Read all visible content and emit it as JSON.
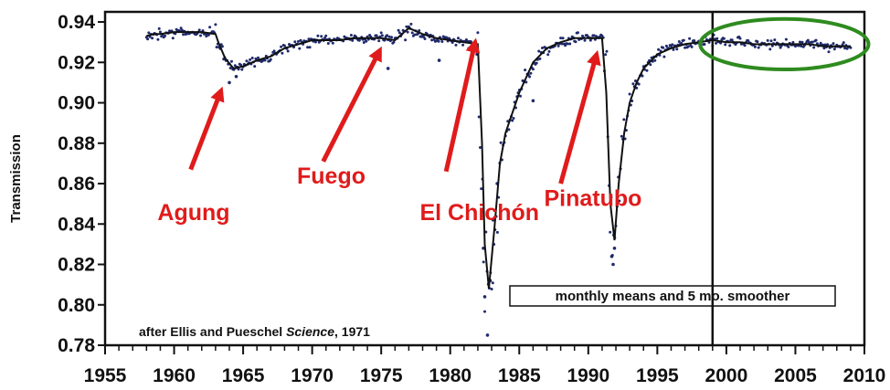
{
  "chart_data": {
    "type": "scatter",
    "title": "",
    "xlabel": "",
    "ylabel": "Transmission",
    "xlim": [
      1955,
      2010
    ],
    "ylim": [
      0.78,
      0.945
    ],
    "x_ticks": [
      1955,
      1960,
      1965,
      1970,
      1975,
      1980,
      1985,
      1990,
      1995,
      2000,
      2005,
      2010
    ],
    "y_ticks": [
      0.78,
      0.8,
      0.82,
      0.84,
      0.86,
      0.88,
      0.9,
      0.92,
      0.94
    ],
    "x_tick_labels": [
      "1955",
      "1960",
      "1965",
      "1970",
      "1975",
      "1980",
      "1985",
      "1990",
      "1995",
      "2000",
      "2005",
      "2010"
    ],
    "y_tick_labels": [
      "0.78",
      "0.80",
      "0.82",
      "0.84",
      "0.86",
      "0.88",
      "0.90",
      "0.92",
      "0.94"
    ],
    "grid": false,
    "legend_text": "monthly means and 5 mo. smoother",
    "credit": {
      "prefix": "after Ellis and Pueschel ",
      "journal": "Science",
      "suffix": ", 1971"
    },
    "colors": {
      "points": "#1f2a6b",
      "smoother": "#111111",
      "annotation": "#e01b1b",
      "highlight": "#2e8b1f"
    },
    "smoother": {
      "x": [
        1958,
        1958.5,
        1959,
        1960,
        1961,
        1962,
        1963,
        1963.2,
        1963.7,
        1964.3,
        1965,
        1966,
        1967,
        1968,
        1969,
        1970,
        1971,
        1972,
        1973,
        1974,
        1975,
        1976,
        1977,
        1978,
        1979,
        1980,
        1981,
        1982.0,
        1982.3,
        1982.5,
        1982.8,
        1983.2,
        1983.6,
        1984,
        1985,
        1986,
        1987,
        1988,
        1989,
        1990,
        1991,
        1991.3,
        1991.6,
        1991.9,
        1992.2,
        1992.6,
        1993,
        1993.5,
        1994,
        1995,
        1996,
        1997,
        1998,
        1999,
        2000,
        2001,
        2002,
        2003,
        2004,
        2005,
        2006,
        2007,
        2008,
        2009
      ],
      "y": [
        0.933,
        0.934,
        0.934,
        0.935,
        0.935,
        0.935,
        0.934,
        0.93,
        0.922,
        0.917,
        0.918,
        0.921,
        0.923,
        0.927,
        0.929,
        0.931,
        0.931,
        0.931,
        0.932,
        0.932,
        0.932,
        0.931,
        0.937,
        0.934,
        0.932,
        0.931,
        0.93,
        0.929,
        0.88,
        0.83,
        0.808,
        0.838,
        0.87,
        0.885,
        0.905,
        0.92,
        0.927,
        0.93,
        0.932,
        0.932,
        0.932,
        0.905,
        0.85,
        0.832,
        0.86,
        0.885,
        0.9,
        0.91,
        0.917,
        0.924,
        0.927,
        0.929,
        0.93,
        0.931,
        0.93,
        0.93,
        0.929,
        0.929,
        0.929,
        0.929,
        0.929,
        0.928,
        0.928,
        0.928
      ]
    },
    "outlier_points": {
      "x": [
        1982.7,
        1982.5,
        1982.4,
        1982.9,
        1983.1,
        1991.8,
        1991.7,
        1991.9,
        1983.4,
        1964.0,
        1964.5,
        1986.0,
        1975.5,
        1979.2
      ],
      "y": [
        0.785,
        0.804,
        0.828,
        0.812,
        0.842,
        0.82,
        0.824,
        0.828,
        0.86,
        0.91,
        0.913,
        0.901,
        0.917,
        0.921
      ]
    },
    "annotations": [
      {
        "text": "Agung",
        "tx": 1958.8,
        "ty": 0.842,
        "from": [
          1961.2,
          0.867
        ],
        "to": [
          1963.4,
          0.906
        ]
      },
      {
        "text": "Fuego",
        "tx": 1968.9,
        "ty": 0.86,
        "from": [
          1970.8,
          0.871
        ],
        "to": [
          1974.9,
          0.926
        ]
      },
      {
        "text": "El Chichón",
        "tx": 1977.8,
        "ty": 0.842,
        "from": [
          1979.7,
          0.866
        ],
        "to": [
          1981.8,
          0.93
        ]
      },
      {
        "text": "Pinatubo",
        "tx": 1986.8,
        "ty": 0.849,
        "from": [
          1988.0,
          0.86
        ],
        "to": [
          1990.6,
          0.924
        ]
      }
    ],
    "vertical_line_x": 1999,
    "highlight_ellipse": {
      "cx": 2004.2,
      "cy": 0.929,
      "rx_years": 6.1,
      "ry": 0.0125
    }
  }
}
